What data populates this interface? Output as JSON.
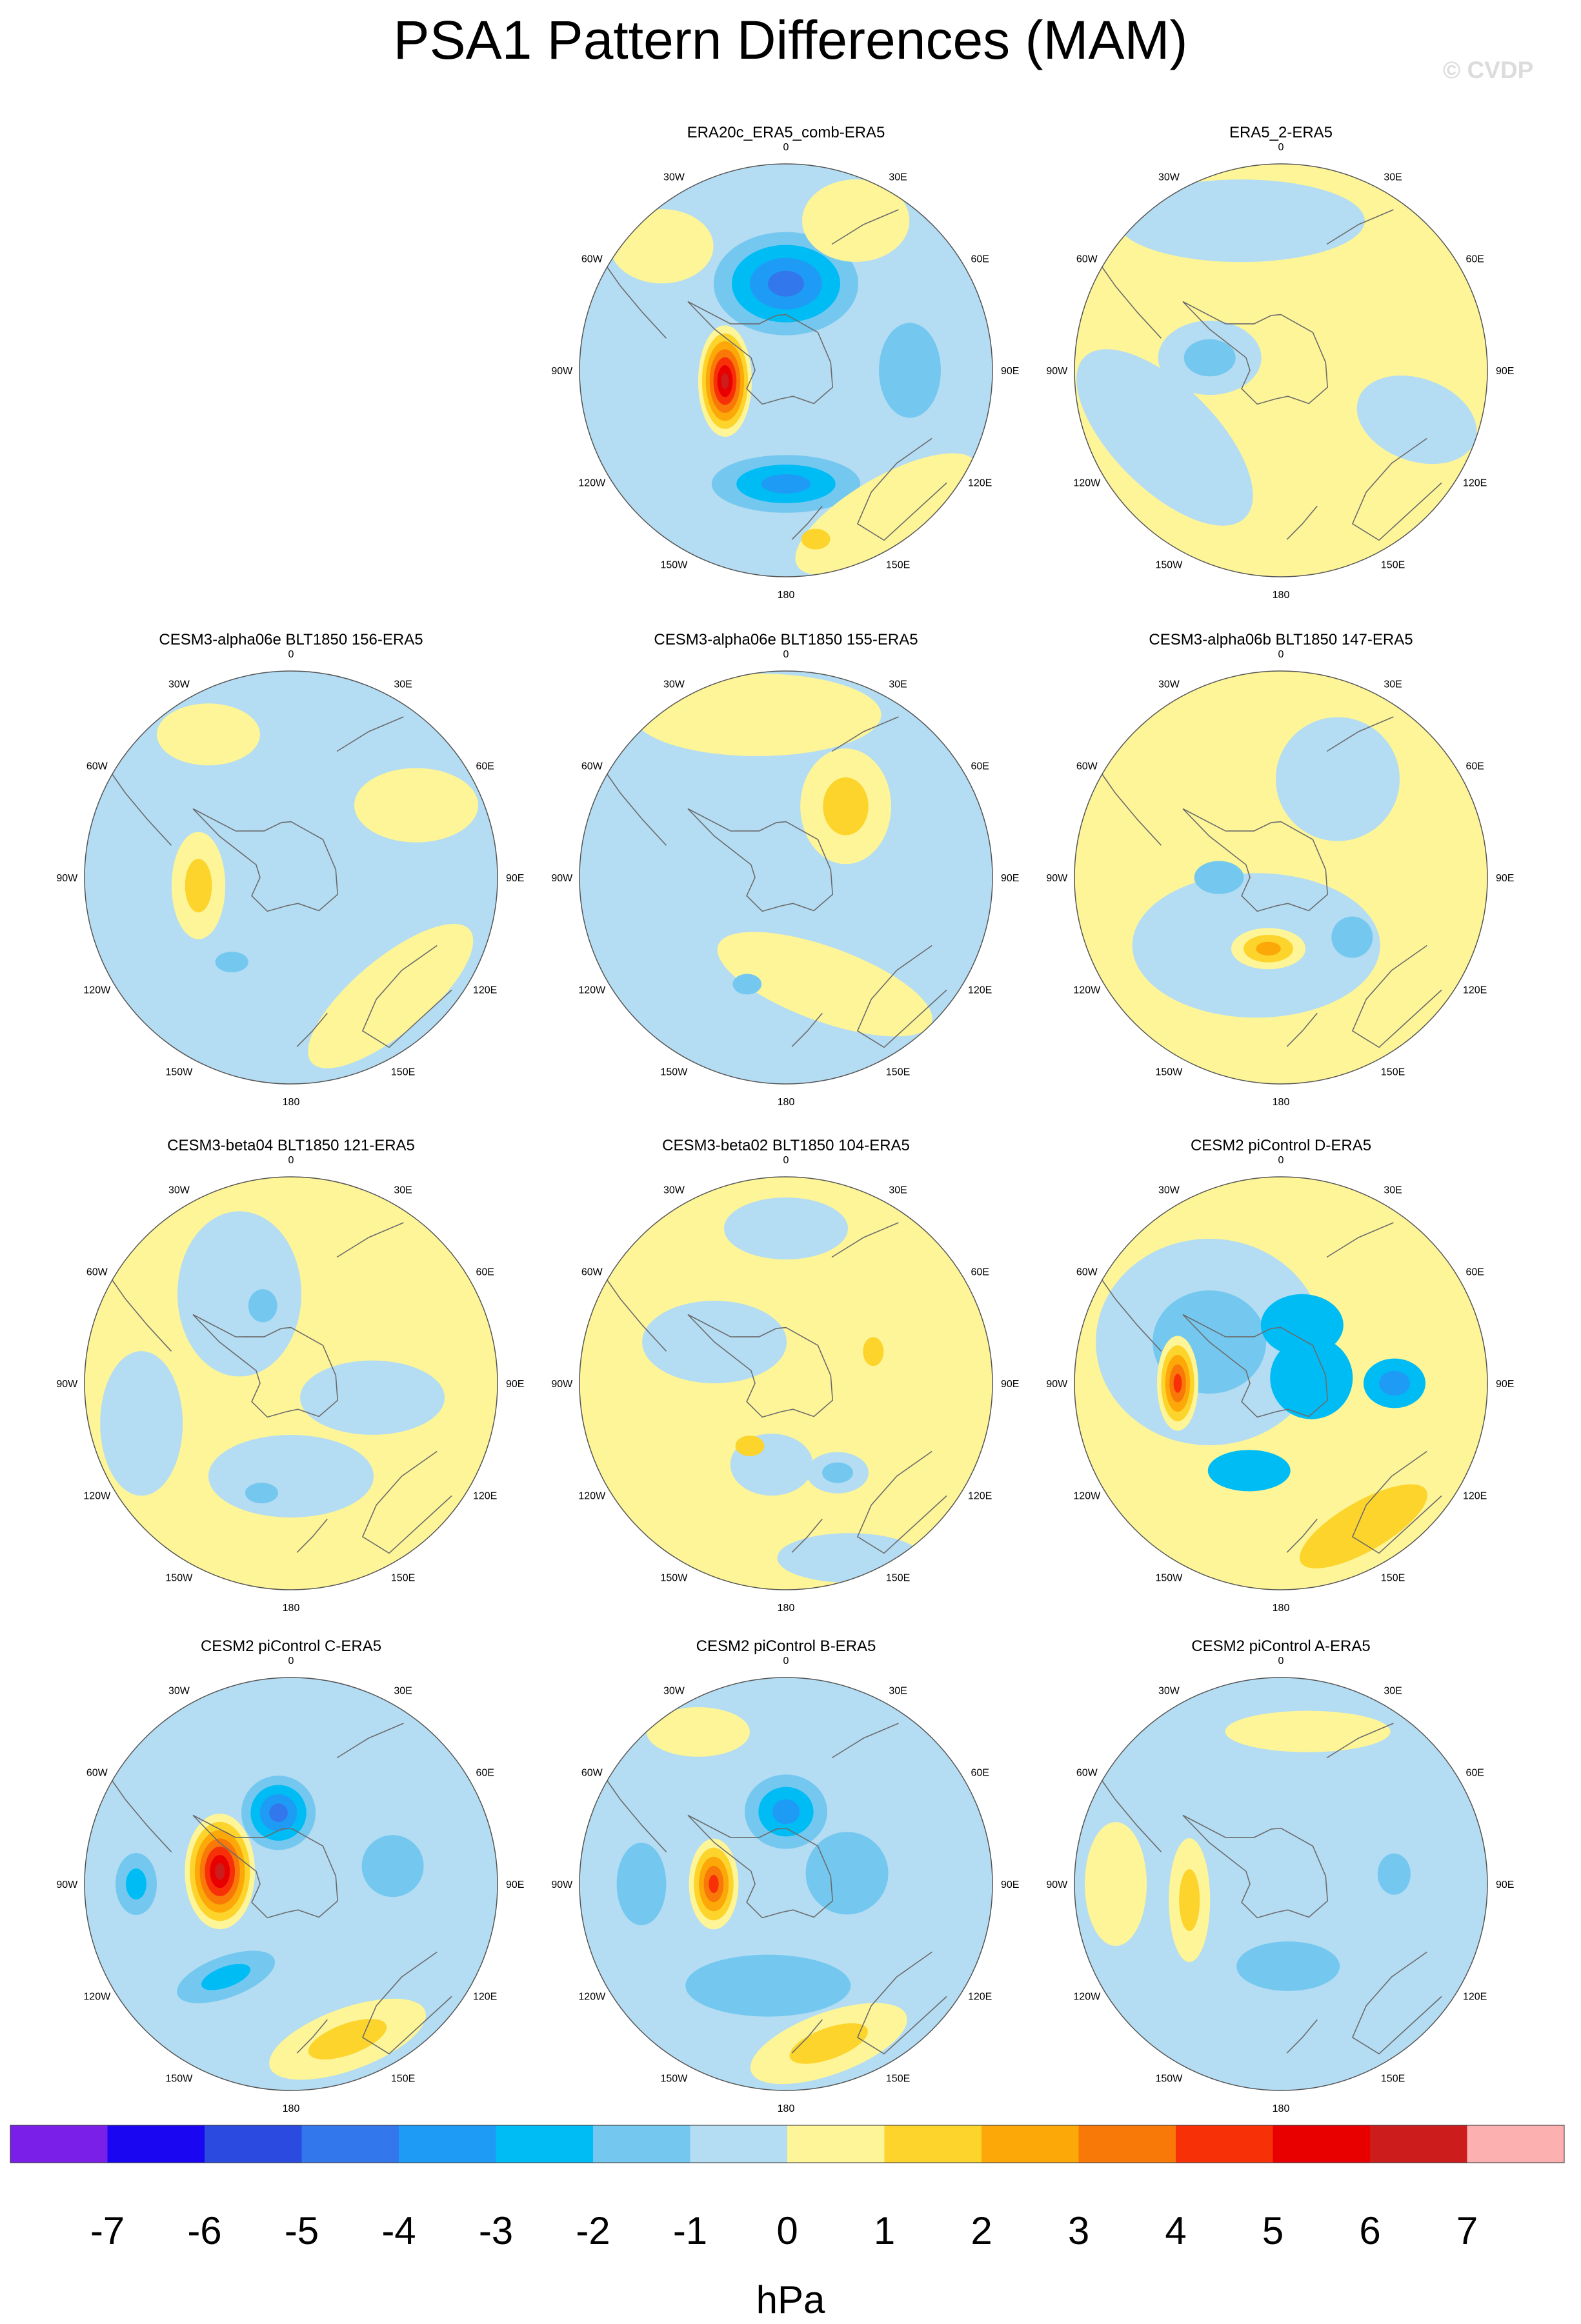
{
  "title": "PSA1 Pattern Differences (MAM)",
  "watermark": "© CVDP",
  "legend": {
    "unit": "hPa",
    "tick_labels": [
      "-7",
      "-6",
      "-5",
      "-4",
      "-3",
      "-2",
      "-1",
      "0",
      "1",
      "2",
      "3",
      "4",
      "5",
      "6",
      "7"
    ],
    "colors": [
      "#7a1fe8",
      "#1a06f0",
      "#2a4ae0",
      "#3278ec",
      "#1e9cf5",
      "#00bcf4",
      "#74c8f0",
      "#b4dcf2",
      "#fdf598",
      "#fcd42c",
      "#fca808",
      "#f87808",
      "#f83008",
      "#e80000",
      "#cc1c1c",
      "#fcb0b0"
    ]
  },
  "map": {
    "longitude_labels": [
      "0",
      "30E",
      "60E",
      "90E",
      "120E",
      "150E",
      "180",
      "150W",
      "120W",
      "90W",
      "60W",
      "30W"
    ]
  },
  "panels": [
    {
      "title": "ERA20c_ERA5_comb-ERA5",
      "background": "#b4dcf2",
      "features": [
        {
          "lon": 260,
          "r": 0.3,
          "rx": 0.13,
          "ry": 0.27,
          "rot": 0,
          "levels": [
            "#fdf598",
            "#fcd42c",
            "#fca808",
            "#f87808",
            "#f83008",
            "#e80000",
            "#cc1c1c"
          ]
        },
        {
          "lon": 0,
          "r": 0.42,
          "rx": 0.35,
          "ry": 0.25,
          "rot": 0,
          "levels": [
            "#74c8f0",
            "#00bcf4",
            "#1e9cf5",
            "#3278ec"
          ]
        },
        {
          "lon": 180,
          "r": 0.55,
          "rx": 0.36,
          "ry": 0.14,
          "rot": 0,
          "levels": [
            "#74c8f0",
            "#00bcf4",
            "#1e9cf5"
          ]
        },
        {
          "lon": 90,
          "r": 0.6,
          "rx": 0.15,
          "ry": 0.23,
          "rot": 0,
          "levels": [
            "#74c8f0"
          ]
        },
        {
          "lon": 145,
          "r": 0.85,
          "rx": 0.5,
          "ry": 0.18,
          "rot": -30,
          "levels": [
            "#fdf598"
          ]
        },
        {
          "lon": 170,
          "r": 0.83,
          "rx": 0.07,
          "ry": 0.05,
          "rot": 0,
          "levels": [
            "#fcd42c"
          ]
        },
        {
          "lon": 25,
          "r": 0.8,
          "rx": 0.26,
          "ry": 0.2,
          "rot": 0,
          "levels": [
            "#fdf598"
          ]
        },
        {
          "lon": 315,
          "r": 0.85,
          "rx": 0.25,
          "ry": 0.18,
          "rot": 0,
          "levels": [
            "#fdf598"
          ]
        }
      ]
    },
    {
      "title": "ERA5_2-ERA5",
      "background": "#fdf598",
      "features": [
        {
          "lon": 345,
          "r": 0.75,
          "rx": 0.6,
          "ry": 0.2,
          "rot": 0,
          "levels": [
            "#b4dcf2"
          ]
        },
        {
          "lon": 240,
          "r": 0.65,
          "rx": 0.55,
          "ry": 0.25,
          "rot": 45,
          "levels": [
            "#b4dcf2"
          ]
        },
        {
          "lon": 280,
          "r": 0.35,
          "rx": 0.25,
          "ry": 0.18,
          "rot": 0,
          "levels": [
            "#b4dcf2",
            "#74c8f0"
          ]
        },
        {
          "lon": 110,
          "r": 0.7,
          "rx": 0.3,
          "ry": 0.2,
          "rot": 20,
          "levels": [
            "#b4dcf2"
          ]
        }
      ]
    },
    {
      "title": "CESM3-alpha06e BLT1850 156-ERA5",
      "background": "#b4dcf2",
      "features": [
        {
          "lon": 265,
          "r": 0.45,
          "rx": 0.13,
          "ry": 0.26,
          "rot": 0,
          "levels": [
            "#fdf598",
            "#fcd42c"
          ]
        },
        {
          "lon": 140,
          "r": 0.75,
          "rx": 0.5,
          "ry": 0.18,
          "rot": -40,
          "levels": [
            "#fdf598"
          ]
        },
        {
          "lon": 60,
          "r": 0.7,
          "rx": 0.3,
          "ry": 0.18,
          "rot": 0,
          "levels": [
            "#fdf598"
          ]
        },
        {
          "lon": 330,
          "r": 0.8,
          "rx": 0.25,
          "ry": 0.15,
          "rot": 0,
          "levels": [
            "#fdf598"
          ]
        },
        {
          "lon": 215,
          "r": 0.5,
          "rx": 0.08,
          "ry": 0.05,
          "rot": 0,
          "levels": [
            "#74c8f0"
          ]
        }
      ]
    },
    {
      "title": "CESM3-alpha06e BLT1850 155-ERA5",
      "background": "#b4dcf2",
      "features": [
        {
          "lon": 350,
          "r": 0.8,
          "rx": 0.6,
          "ry": 0.2,
          "rot": 0,
          "levels": [
            "#fdf598"
          ]
        },
        {
          "lon": 40,
          "r": 0.45,
          "rx": 0.22,
          "ry": 0.28,
          "rot": 0,
          "levels": [
            "#fdf598",
            "#fcd42c"
          ]
        },
        {
          "lon": 160,
          "r": 0.55,
          "rx": 0.55,
          "ry": 0.18,
          "rot": 20,
          "levels": [
            "#fdf598"
          ]
        },
        {
          "lon": 200,
          "r": 0.55,
          "rx": 0.07,
          "ry": 0.05,
          "rot": 0,
          "levels": [
            "#74c8f0"
          ]
        }
      ]
    },
    {
      "title": "CESM3-alpha06b BLT1850 147-ERA5",
      "background": "#fdf598",
      "features": [
        {
          "lon": 200,
          "r": 0.35,
          "rx": 0.6,
          "ry": 0.35,
          "rot": 0,
          "levels": [
            "#b4dcf2"
          ]
        },
        {
          "lon": 190,
          "r": 0.35,
          "rx": 0.18,
          "ry": 0.1,
          "rot": 0,
          "levels": [
            "#fdf598",
            "#fcd42c",
            "#fca808"
          ]
        },
        {
          "lon": 130,
          "r": 0.45,
          "rx": 0.1,
          "ry": 0.1,
          "rot": 0,
          "levels": [
            "#74c8f0"
          ]
        },
        {
          "lon": 270,
          "r": 0.3,
          "rx": 0.12,
          "ry": 0.08,
          "rot": 0,
          "levels": [
            "#74c8f0"
          ]
        },
        {
          "lon": 30,
          "r": 0.55,
          "rx": 0.3,
          "ry": 0.3,
          "rot": 0,
          "levels": [
            "#b4dcf2"
          ]
        }
      ]
    },
    {
      "title": "CESM3-beta04 BLT1850 121-ERA5",
      "background": "#fdf598",
      "features": [
        {
          "lon": 330,
          "r": 0.5,
          "rx": 0.3,
          "ry": 0.4,
          "rot": 0,
          "levels": [
            "#b4dcf2"
          ]
        },
        {
          "lon": 180,
          "r": 0.45,
          "rx": 0.4,
          "ry": 0.2,
          "rot": 0,
          "levels": [
            "#b4dcf2"
          ]
        },
        {
          "lon": 100,
          "r": 0.4,
          "rx": 0.35,
          "ry": 0.18,
          "rot": 0,
          "levels": [
            "#b4dcf2"
          ]
        },
        {
          "lon": 340,
          "r": 0.4,
          "rx": 0.07,
          "ry": 0.08,
          "rot": 0,
          "levels": [
            "#74c8f0"
          ]
        },
        {
          "lon": 195,
          "r": 0.55,
          "rx": 0.08,
          "ry": 0.05,
          "rot": 0,
          "levels": [
            "#74c8f0"
          ]
        },
        {
          "lon": 255,
          "r": 0.75,
          "rx": 0.2,
          "ry": 0.35,
          "rot": 0,
          "levels": [
            "#b4dcf2"
          ]
        }
      ]
    },
    {
      "title": "CESM3-beta02 BLT1850 104-ERA5",
      "background": "#fdf598",
      "features": [
        {
          "lon": 300,
          "r": 0.4,
          "rx": 0.35,
          "ry": 0.2,
          "rot": 0,
          "levels": [
            "#b4dcf2"
          ]
        },
        {
          "lon": 190,
          "r": 0.4,
          "rx": 0.2,
          "ry": 0.15,
          "rot": 0,
          "levels": [
            "#b4dcf2"
          ]
        },
        {
          "lon": 150,
          "r": 0.5,
          "rx": 0.15,
          "ry": 0.1,
          "rot": 0,
          "levels": [
            "#b4dcf2",
            "#74c8f0"
          ]
        },
        {
          "lon": 210,
          "r": 0.35,
          "rx": 0.07,
          "ry": 0.05,
          "rot": 0,
          "levels": [
            "#fcd42c"
          ]
        },
        {
          "lon": 70,
          "r": 0.45,
          "rx": 0.05,
          "ry": 0.07,
          "rot": 0,
          "levels": [
            "#fcd42c"
          ]
        },
        {
          "lon": 0,
          "r": 0.75,
          "rx": 0.3,
          "ry": 0.15,
          "rot": 0,
          "levels": [
            "#b4dcf2"
          ]
        },
        {
          "lon": 160,
          "r": 0.9,
          "rx": 0.35,
          "ry": 0.12,
          "rot": 0,
          "levels": [
            "#b4dcf2"
          ]
        }
      ]
    },
    {
      "title": "CESM2 piControl D-ERA5",
      "background": "#fdf598",
      "features": [
        {
          "lon": 300,
          "r": 0.4,
          "rx": 0.55,
          "ry": 0.5,
          "rot": 0,
          "levels": [
            "#b4dcf2",
            "#74c8f0"
          ]
        },
        {
          "lon": 20,
          "r": 0.3,
          "rx": 0.2,
          "ry": 0.15,
          "rot": 0,
          "levels": [
            "#00bcf4"
          ]
        },
        {
          "lon": 80,
          "r": 0.15,
          "rx": 0.2,
          "ry": 0.2,
          "rot": 0,
          "levels": [
            "#00bcf4"
          ]
        },
        {
          "lon": 90,
          "r": 0.55,
          "rx": 0.15,
          "ry": 0.12,
          "rot": 0,
          "levels": [
            "#00bcf4",
            "#1e9cf5"
          ]
        },
        {
          "lon": 200,
          "r": 0.45,
          "rx": 0.2,
          "ry": 0.1,
          "rot": 0,
          "levels": [
            "#00bcf4"
          ]
        },
        {
          "lon": 270,
          "r": 0.5,
          "rx": 0.1,
          "ry": 0.23,
          "rot": 0,
          "levels": [
            "#fdf598",
            "#fcd42c",
            "#fca808",
            "#f87808",
            "#f83008"
          ]
        },
        {
          "lon": 150,
          "r": 0.8,
          "rx": 0.35,
          "ry": 0.12,
          "rot": -30,
          "levels": [
            "#fcd42c"
          ]
        }
      ]
    },
    {
      "title": "CESM2 piControl C-ERA5",
      "background": "#b4dcf2",
      "features": [
        {
          "lon": 280,
          "r": 0.35,
          "rx": 0.17,
          "ry": 0.28,
          "rot": 0,
          "levels": [
            "#fdf598",
            "#fcd42c",
            "#fca808",
            "#f87808",
            "#f83008",
            "#e80000",
            "#cc1c1c"
          ]
        },
        {
          "lon": 350,
          "r": 0.35,
          "rx": 0.18,
          "ry": 0.18,
          "rot": 0,
          "levels": [
            "#74c8f0",
            "#00bcf4",
            "#1e9cf5",
            "#3278ec"
          ]
        },
        {
          "lon": 215,
          "r": 0.55,
          "rx": 0.25,
          "ry": 0.1,
          "rot": -20,
          "levels": [
            "#74c8f0",
            "#00bcf4"
          ]
        },
        {
          "lon": 270,
          "r": 0.75,
          "rx": 0.1,
          "ry": 0.15,
          "rot": 0,
          "levels": [
            "#74c8f0",
            "#00bcf4"
          ]
        },
        {
          "lon": 80,
          "r": 0.5,
          "rx": 0.15,
          "ry": 0.15,
          "rot": 0,
          "levels": [
            "#74c8f0"
          ]
        },
        {
          "lon": 160,
          "r": 0.8,
          "rx": 0.4,
          "ry": 0.15,
          "rot": -20,
          "levels": [
            "#fdf598",
            "#fcd42c"
          ]
        }
      ]
    },
    {
      "title": "CESM2 piControl B-ERA5",
      "background": "#b4dcf2",
      "features": [
        {
          "lon": 270,
          "r": 0.35,
          "rx": 0.12,
          "ry": 0.22,
          "rot": 0,
          "levels": [
            "#fdf598",
            "#fcd42c",
            "#fca808",
            "#f87808",
            "#f83008"
          ]
        },
        {
          "lon": 0,
          "r": 0.35,
          "rx": 0.2,
          "ry": 0.18,
          "rot": 0,
          "levels": [
            "#74c8f0",
            "#00bcf4",
            "#1e9cf5"
          ]
        },
        {
          "lon": 190,
          "r": 0.5,
          "rx": 0.4,
          "ry": 0.15,
          "rot": 0,
          "levels": [
            "#74c8f0"
          ]
        },
        {
          "lon": 270,
          "r": 0.7,
          "rx": 0.12,
          "ry": 0.2,
          "rot": 0,
          "levels": [
            "#74c8f0"
          ]
        },
        {
          "lon": 80,
          "r": 0.3,
          "rx": 0.2,
          "ry": 0.2,
          "rot": 0,
          "levels": [
            "#74c8f0"
          ]
        },
        {
          "lon": 165,
          "r": 0.8,
          "rx": 0.4,
          "ry": 0.15,
          "rot": -20,
          "levels": [
            "#fdf598",
            "#fcd42c"
          ]
        },
        {
          "lon": 330,
          "r": 0.85,
          "rx": 0.25,
          "ry": 0.12,
          "rot": 0,
          "levels": [
            "#fdf598"
          ]
        }
      ]
    },
    {
      "title": "CESM2 piControl A-ERA5",
      "background": "#b4dcf2",
      "features": [
        {
          "lon": 260,
          "r": 0.45,
          "rx": 0.1,
          "ry": 0.3,
          "rot": 0,
          "levels": [
            "#fdf598",
            "#fcd42c"
          ]
        },
        {
          "lon": 10,
          "r": 0.75,
          "rx": 0.4,
          "ry": 0.1,
          "rot": 0,
          "levels": [
            "#fdf598"
          ]
        },
        {
          "lon": 270,
          "r": 0.8,
          "rx": 0.15,
          "ry": 0.3,
          "rot": 0,
          "levels": [
            "#fdf598"
          ]
        },
        {
          "lon": 175,
          "r": 0.4,
          "rx": 0.25,
          "ry": 0.12,
          "rot": 0,
          "levels": [
            "#74c8f0"
          ]
        },
        {
          "lon": 85,
          "r": 0.55,
          "rx": 0.08,
          "ry": 0.1,
          "rot": 0,
          "levels": [
            "#74c8f0"
          ]
        }
      ]
    }
  ]
}
